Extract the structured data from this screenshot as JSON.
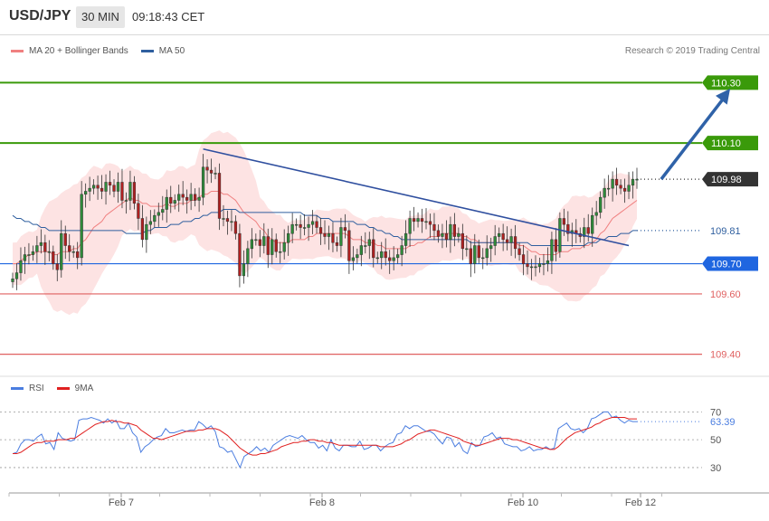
{
  "header": {
    "symbol": "USD/JPY",
    "timeframe": "30 MIN",
    "time": "09:18:43 CET"
  },
  "legend": {
    "ma20_label": "MA 20 + Bollinger Bands",
    "ma50_label": "MA 50",
    "ma20_color": "#f08080",
    "ma50_color": "#2f5f9f"
  },
  "credit": "Research © 2019 Trading Central",
  "rsi_legend": {
    "rsi_label": "RSI",
    "ma_label": "9MA",
    "rsi_color": "#4a7de0",
    "ma_color": "#e02020"
  },
  "chart_data": [
    {
      "type": "line",
      "name": "price",
      "ylim": [
        109.33,
        110.37
      ],
      "x_ticks": [
        "Feb 7",
        "Feb 8",
        "Feb 10",
        "Feb 12"
      ],
      "levels": [
        {
          "value": 110.3,
          "label": "110.30",
          "style": "resistance",
          "color": "#3a9a0a"
        },
        {
          "value": 110.1,
          "label": "110.10",
          "style": "resistance",
          "color": "#3a9a0a"
        },
        {
          "value": 109.98,
          "label": "109.98",
          "style": "current",
          "color": "#333333"
        },
        {
          "value": 109.81,
          "label": "109.81",
          "style": "ma50",
          "color": "#2f5f9f"
        },
        {
          "value": 109.7,
          "label": "109.70",
          "style": "pivot",
          "color": "#1f66e0"
        },
        {
          "value": 109.6,
          "label": "109.60",
          "style": "support",
          "color": "#e06060"
        },
        {
          "value": 109.4,
          "label": "109.40",
          "style": "support",
          "color": "#e06060"
        }
      ],
      "closes": [
        109.65,
        109.67,
        109.71,
        109.73,
        109.73,
        109.74,
        109.76,
        109.77,
        109.74,
        109.74,
        109.7,
        109.68,
        109.8,
        109.76,
        109.74,
        109.74,
        109.72,
        109.93,
        109.94,
        109.95,
        109.96,
        109.95,
        109.94,
        109.97,
        109.96,
        109.94,
        109.97,
        109.91,
        109.91,
        109.97,
        109.9,
        109.85,
        109.78,
        109.83,
        109.84,
        109.86,
        109.87,
        109.88,
        109.92,
        109.9,
        109.91,
        109.93,
        109.92,
        109.91,
        109.93,
        109.91,
        109.92,
        110.02,
        110.01,
        110.0,
        110.0,
        109.85,
        109.85,
        109.84,
        109.84,
        109.8,
        109.66,
        109.7,
        109.75,
        109.78,
        109.78,
        109.76,
        109.79,
        109.73,
        109.78,
        109.74,
        109.74,
        109.77,
        109.8,
        109.83,
        109.83,
        109.82,
        109.82,
        109.83,
        109.84,
        109.82,
        109.8,
        109.79,
        109.8,
        109.77,
        109.76,
        109.82,
        109.81,
        109.71,
        109.72,
        109.73,
        109.76,
        109.76,
        109.78,
        109.72,
        109.72,
        109.74,
        109.72,
        109.71,
        109.72,
        109.73,
        109.76,
        109.8,
        109.85,
        109.84,
        109.85,
        109.84,
        109.84,
        109.83,
        109.81,
        109.79,
        109.8,
        109.78,
        109.83,
        109.79,
        109.8,
        109.75,
        109.75,
        109.7,
        109.76,
        109.72,
        109.72,
        109.75,
        109.76,
        109.79,
        109.8,
        109.78,
        109.77,
        109.79,
        109.75,
        109.73,
        109.7,
        109.69,
        109.69,
        109.69,
        109.7,
        109.7,
        109.71,
        109.78,
        109.74,
        109.85,
        109.83,
        109.8,
        109.81,
        109.8,
        109.79,
        109.82,
        109.8,
        109.86,
        109.87,
        109.92,
        109.95,
        109.95,
        109.98,
        109.96,
        109.95,
        109.94,
        109.96,
        109.98,
        109.98
      ],
      "ma20": [
        109.7,
        109.7,
        109.71,
        109.72,
        109.73,
        109.73,
        109.74,
        109.74,
        109.74,
        109.74,
        109.73,
        109.73,
        109.74,
        109.74,
        109.74,
        109.75,
        109.75,
        109.77,
        109.78,
        109.8,
        109.82,
        109.83,
        109.84,
        109.86,
        109.87,
        109.88,
        109.89,
        109.9,
        109.91,
        109.92,
        109.91,
        109.91,
        109.9,
        109.9,
        109.89,
        109.89,
        109.89,
        109.89,
        109.9,
        109.89,
        109.89,
        109.9,
        109.9,
        109.9,
        109.91,
        109.91,
        109.92,
        109.93,
        109.93,
        109.94,
        109.94,
        109.94,
        109.93,
        109.93,
        109.92,
        109.91,
        109.89,
        109.87,
        109.86,
        109.85,
        109.84,
        109.82,
        109.81,
        109.79,
        109.78,
        109.77,
        109.77,
        109.77,
        109.77,
        109.78,
        109.78,
        109.78,
        109.78,
        109.79,
        109.79,
        109.8,
        109.8,
        109.8,
        109.8,
        109.8,
        109.8,
        109.8,
        109.8,
        109.79,
        109.78,
        109.78,
        109.78,
        109.77,
        109.77,
        109.77,
        109.76,
        109.76,
        109.75,
        109.75,
        109.75,
        109.75,
        109.75,
        109.75,
        109.76,
        109.76,
        109.77,
        109.77,
        109.78,
        109.79,
        109.79,
        109.79,
        109.8,
        109.8,
        109.8,
        109.8,
        109.8,
        109.79,
        109.79,
        109.78,
        109.78,
        109.77,
        109.77,
        109.77,
        109.77,
        109.77,
        109.77,
        109.77,
        109.77,
        109.77,
        109.77,
        109.76,
        109.76,
        109.75,
        109.74,
        109.74,
        109.73,
        109.73,
        109.73,
        109.73,
        109.73,
        109.74,
        109.74,
        109.74,
        109.75,
        109.75,
        109.75,
        109.76,
        109.76,
        109.77,
        109.78,
        109.8,
        109.81,
        109.83,
        109.85,
        109.86,
        109.87,
        109.88,
        109.89,
        109.9,
        109.91
      ],
      "ma50": [
        109.86,
        109.85,
        109.85,
        109.84,
        109.84,
        109.83,
        109.83,
        109.82,
        109.82,
        109.81,
        109.81,
        109.81,
        109.81,
        109.81,
        109.81,
        109.81,
        109.81,
        109.81,
        109.81,
        109.81,
        109.81,
        109.81,
        109.81,
        109.81,
        109.81,
        109.81,
        109.81,
        109.81,
        109.8,
        109.8,
        109.8,
        109.8,
        109.8,
        109.81,
        109.81,
        109.82,
        109.82,
        109.82,
        109.82,
        109.83,
        109.83,
        109.83,
        109.84,
        109.84,
        109.84,
        109.85,
        109.85,
        109.86,
        109.86,
        109.87,
        109.87,
        109.87,
        109.88,
        109.88,
        109.88,
        109.88,
        109.87,
        109.87,
        109.87,
        109.87,
        109.87,
        109.87,
        109.87,
        109.87,
        109.87,
        109.87,
        109.87,
        109.87,
        109.87,
        109.87,
        109.87,
        109.87,
        109.86,
        109.86,
        109.86,
        109.86,
        109.85,
        109.85,
        109.85,
        109.84,
        109.84,
        109.84,
        109.84,
        109.84,
        109.84,
        109.83,
        109.83,
        109.83,
        109.82,
        109.82,
        109.81,
        109.81,
        109.8,
        109.8,
        109.79,
        109.79,
        109.78,
        109.78,
        109.78,
        109.78,
        109.78,
        109.78,
        109.78,
        109.78,
        109.78,
        109.78,
        109.78,
        109.78,
        109.78,
        109.78,
        109.78,
        109.78,
        109.78,
        109.77,
        109.77,
        109.77,
        109.77,
        109.77,
        109.77,
        109.77,
        109.77,
        109.77,
        109.77,
        109.77,
        109.77,
        109.77,
        109.77,
        109.77,
        109.76,
        109.76,
        109.76,
        109.76,
        109.76,
        109.76,
        109.76,
        109.76,
        109.76,
        109.76,
        109.76,
        109.76,
        109.76,
        109.76,
        109.77,
        109.77,
        109.77,
        109.78,
        109.78,
        109.79,
        109.79,
        109.79,
        109.8,
        109.8,
        109.8,
        109.81,
        109.81
      ],
      "trendline": {
        "from": {
          "index": 47,
          "value": 110.08
        },
        "to": {
          "index": 152,
          "value": 109.76
        }
      },
      "arrow": {
        "from": {
          "index": 160,
          "value": 109.98
        },
        "to": {
          "index": 177,
          "value": 110.28
        }
      }
    },
    {
      "type": "line",
      "name": "RSI",
      "ylim": [
        15,
        80
      ],
      "y_ticks": [
        "70",
        "50",
        "30"
      ],
      "current_label": "63.39",
      "rsi": [
        40,
        41,
        47,
        50,
        50,
        49,
        52,
        54,
        47,
        48,
        43,
        55,
        51,
        50,
        49,
        50,
        64,
        65,
        65,
        66,
        65,
        64,
        62,
        65,
        62,
        64,
        58,
        58,
        62,
        55,
        52,
        41,
        45,
        47,
        50,
        52,
        53,
        58,
        55,
        55,
        56,
        57,
        56,
        57,
        57,
        63,
        61,
        58,
        60,
        56,
        45,
        44,
        41,
        42,
        36,
        30,
        38,
        40,
        42,
        45,
        42,
        44,
        41,
        46,
        48,
        50,
        52,
        53,
        52,
        51,
        53,
        50,
        48,
        48,
        44,
        46,
        42,
        50,
        44,
        42,
        46,
        46,
        45,
        45,
        49,
        43,
        44,
        46,
        46,
        42,
        45,
        47,
        48,
        54,
        55,
        60,
        58,
        60,
        60,
        58,
        56,
        56,
        54,
        50,
        47,
        52,
        51,
        45,
        48,
        42,
        40,
        48,
        45,
        46,
        52,
        53,
        55,
        51,
        52,
        47,
        46,
        45,
        45,
        42,
        43,
        45,
        42,
        43,
        43,
        45,
        43,
        44,
        58,
        60,
        62,
        58,
        57,
        58,
        55,
        58,
        65,
        66,
        68,
        70,
        70,
        66,
        67,
        64,
        62,
        64,
        63,
        63
      ],
      "ma9": [
        40,
        40,
        41,
        43,
        45,
        47,
        48,
        48,
        49,
        49,
        49,
        50,
        50,
        50,
        51,
        51,
        53,
        55,
        57,
        59,
        61,
        62,
        63,
        63,
        64,
        63,
        63,
        62,
        62,
        61,
        60,
        57,
        55,
        53,
        51,
        51,
        50,
        51,
        52,
        53,
        54,
        55,
        56,
        56,
        56,
        57,
        57,
        58,
        58,
        58,
        57,
        55,
        53,
        50,
        47,
        44,
        42,
        40,
        39,
        39,
        40,
        40,
        41,
        42,
        43,
        45,
        46,
        47,
        48,
        48,
        49,
        49,
        50,
        50,
        49,
        49,
        48,
        48,
        47,
        46,
        46,
        46,
        46,
        46,
        46,
        46,
        46,
        46,
        46,
        45,
        45,
        45,
        45,
        46,
        47,
        49,
        50,
        52,
        54,
        55,
        56,
        57,
        57,
        56,
        55,
        54,
        53,
        52,
        51,
        49,
        48,
        47,
        46,
        46,
        47,
        48,
        49,
        50,
        51,
        51,
        51,
        50,
        50,
        49,
        48,
        47,
        46,
        45,
        44,
        44,
        43,
        43,
        45,
        48,
        51,
        53,
        55,
        56,
        57,
        58,
        59,
        61,
        62,
        64,
        65,
        66,
        66,
        66,
        66,
        65,
        65,
        65
      ]
    }
  ]
}
